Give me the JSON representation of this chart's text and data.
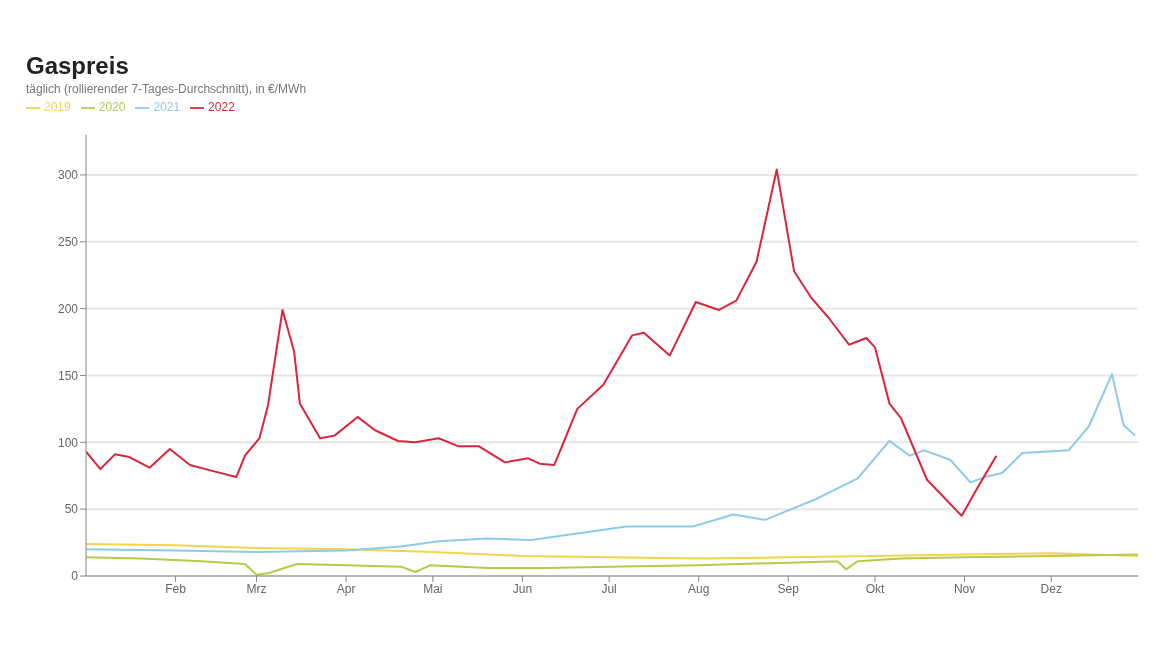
{
  "chart_data": {
    "type": "line",
    "title": "Gaspreis",
    "subtitle": "täglich (rollierender 7-Tages-Durchschnitt), in €/MWh",
    "xlim": [
      "--01-01",
      "--12-31"
    ],
    "xticks": [
      {
        "value": "--02-01",
        "label": "Feb"
      },
      {
        "value": "--03-01",
        "label": "Mrz"
      },
      {
        "value": "--04-01",
        "label": "Apr"
      },
      {
        "value": "--05-01",
        "label": "Mai"
      },
      {
        "value": "--06-01",
        "label": "Jun"
      },
      {
        "value": "--07-01",
        "label": "Jul"
      },
      {
        "value": "--08-01",
        "label": "Aug"
      },
      {
        "value": "--09-01",
        "label": "Sep"
      },
      {
        "value": "--10-01",
        "label": "Okt"
      },
      {
        "value": "--11-01",
        "label": "Nov"
      },
      {
        "value": "--12-01",
        "label": "Dez"
      }
    ],
    "ylim": [
      0,
      330
    ],
    "yticks": [
      0,
      50,
      100,
      150,
      200,
      250,
      300
    ],
    "grid": "y",
    "legend": "top left",
    "marker": "none",
    "line_style": "solid",
    "series": [
      {
        "name": "2019",
        "color": "#f2d54a",
        "x": [
          "--01-01",
          "--02-01",
          "--03-01",
          "--04-01",
          "--05-01",
          "--06-01",
          "--07-01",
          "--08-01",
          "--09-01",
          "--10-01",
          "--11-01",
          "--12-01",
          "--12-31"
        ],
        "values": [
          24,
          23,
          21,
          20,
          18,
          15,
          14,
          13,
          14,
          15,
          16,
          17,
          15
        ]
      },
      {
        "name": "2020",
        "color": "#b9c94a",
        "x": [
          "--01-01",
          "--01-20",
          "--02-10",
          "--02-25",
          "--03-01",
          "--03-05",
          "--03-15",
          "--04-01",
          "--04-20",
          "--04-25",
          "--04-30",
          "--05-20",
          "--06-10",
          "--07-01",
          "--08-01",
          "--09-01",
          "--09-18",
          "--09-21",
          "--09-25",
          "--10-10",
          "--11-01",
          "--12-01",
          "--12-31"
        ],
        "values": [
          14,
          13,
          11,
          9,
          1,
          2,
          9,
          8,
          7,
          3,
          8,
          6,
          6,
          7,
          8,
          10,
          11,
          5,
          11,
          13,
          14,
          15,
          16
        ]
      },
      {
        "name": "2021",
        "color": "#8ccbe8",
        "x": [
          "--01-01",
          "--02-01",
          "--03-01",
          "--04-01",
          "--04-20",
          "--05-03",
          "--05-20",
          "--06-04",
          "--07-07",
          "--07-30",
          "--08-13",
          "--08-24",
          "--09-10",
          "--09-25",
          "--10-06",
          "--10-13",
          "--10-18",
          "--10-27",
          "--11-03",
          "--11-08",
          "--11-14",
          "--11-21",
          "--12-07",
          "--12-14",
          "--12-22",
          "--12-26",
          "--12-30"
        ],
        "values": [
          20,
          19,
          18,
          19,
          22,
          26,
          28,
          27,
          37,
          37,
          46,
          42,
          57,
          73,
          101,
          90,
          94,
          87,
          70,
          74,
          77,
          92,
          94,
          112,
          151,
          113,
          105
        ]
      },
      {
        "name": "2022",
        "color": "#d9263a",
        "x": [
          "--01-01",
          "--01-06",
          "--01-11",
          "--01-16",
          "--01-23",
          "--01-30",
          "--02-06",
          "--02-13",
          "--02-22",
          "--02-25",
          "--03-02",
          "--03-05",
          "--03-10",
          "--03-14",
          "--03-16",
          "--03-23",
          "--03-28",
          "--04-05",
          "--04-11",
          "--04-19",
          "--04-25",
          "--05-03",
          "--05-10",
          "--05-17",
          "--05-26",
          "--06-03",
          "--06-07",
          "--06-12",
          "--06-20",
          "--06-29",
          "--07-09",
          "--07-13",
          "--07-22",
          "--07-31",
          "--08-08",
          "--08-14",
          "--08-21",
          "--08-28",
          "--09-03",
          "--09-09",
          "--09-15",
          "--09-22",
          "--09-28",
          "--10-01",
          "--10-06",
          "--10-10",
          "--10-19",
          "--10-31",
          "--11-06",
          "--11-12"
        ],
        "values": [
          93,
          80,
          91,
          89,
          81,
          95,
          83,
          79,
          74,
          90,
          103,
          128,
          199,
          168,
          129,
          103,
          105,
          119,
          109,
          101,
          100,
          103,
          97,
          97,
          85,
          88,
          84,
          83,
          125,
          143,
          180,
          182,
          165,
          205,
          199,
          206,
          235,
          304,
          228,
          208,
          193,
          173,
          178,
          171,
          129,
          118,
          72,
          45,
          68,
          90
        ]
      }
    ]
  }
}
